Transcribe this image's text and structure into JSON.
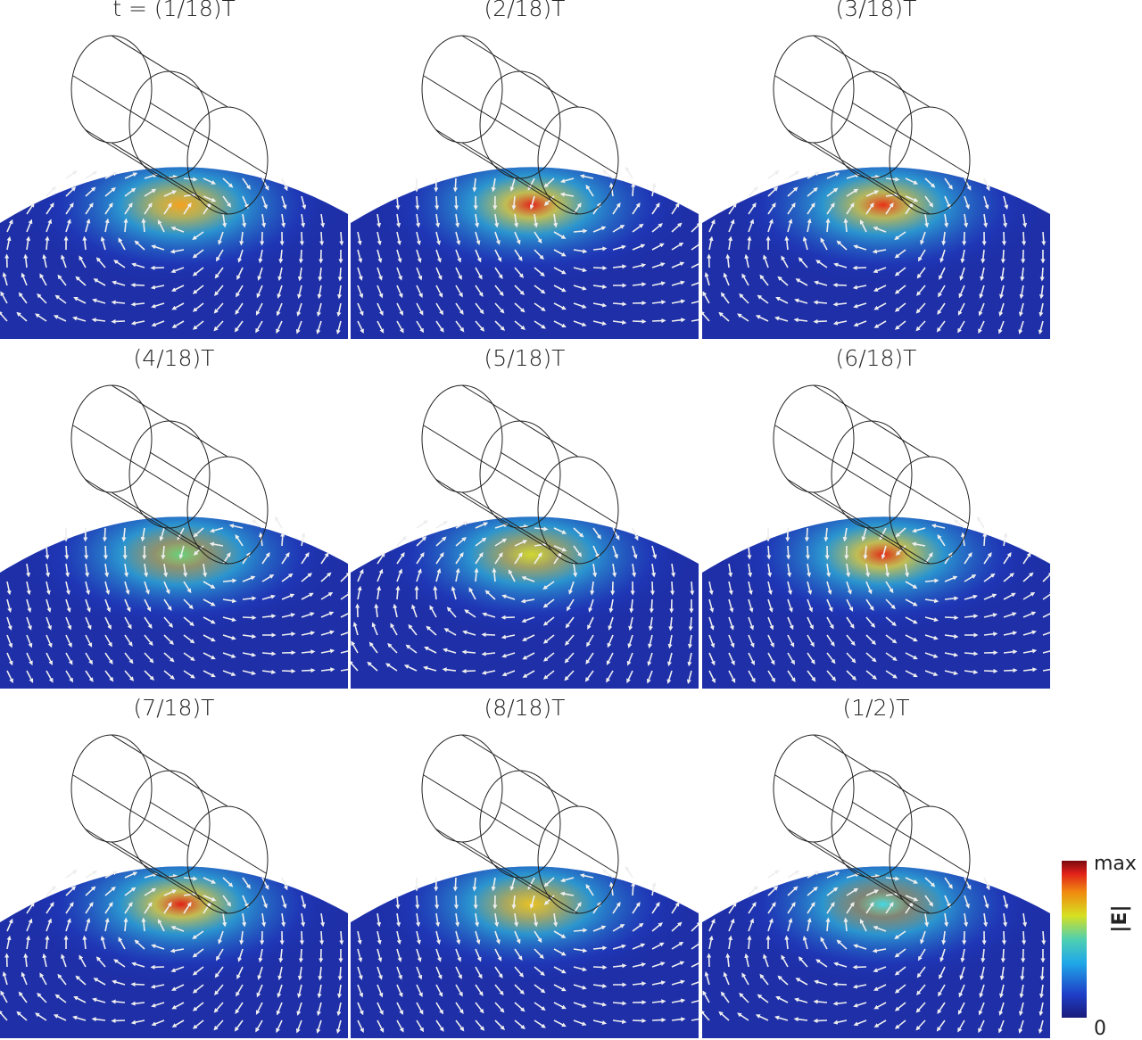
{
  "panels": [
    {
      "title": "t = (1/18)T"
    },
    {
      "title": "(2/18)T"
    },
    {
      "title": "(3/18)T"
    },
    {
      "title": "(4/18)T"
    },
    {
      "title": "(5/18)T"
    },
    {
      "title": "(6/18)T"
    },
    {
      "title": "(7/18)T"
    },
    {
      "title": "(8/18)T"
    },
    {
      "title": "(1/2)T"
    }
  ],
  "colorbar": {
    "max_label": "max",
    "min_label": "0",
    "quantity": "|E|"
  }
}
